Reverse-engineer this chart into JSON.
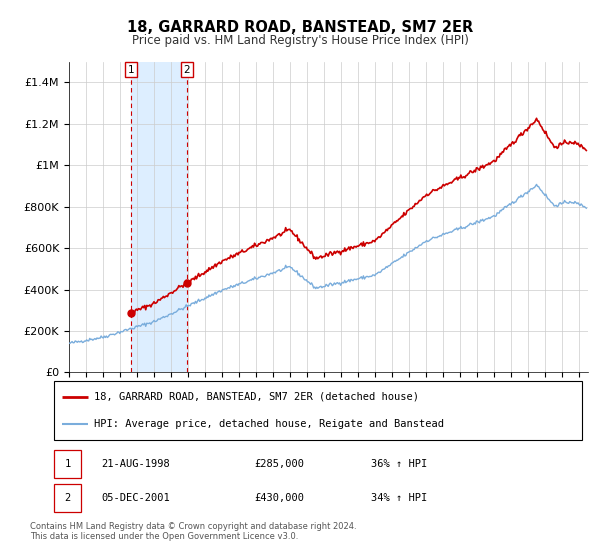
{
  "title": "18, GARRARD ROAD, BANSTEAD, SM7 2ER",
  "subtitle": "Price paid vs. HM Land Registry's House Price Index (HPI)",
  "legend_line1": "18, GARRARD ROAD, BANSTEAD, SM7 2ER (detached house)",
  "legend_line2": "HPI: Average price, detached house, Reigate and Banstead",
  "footer": "Contains HM Land Registry data © Crown copyright and database right 2024.\nThis data is licensed under the Open Government Licence v3.0.",
  "purchase1_date": "21-AUG-1998",
  "purchase1_price": 285000,
  "purchase1_hpi": "36% ↑ HPI",
  "purchase2_date": "05-DEC-2001",
  "purchase2_price": 430000,
  "purchase2_hpi": "34% ↑ HPI",
  "red_color": "#cc0000",
  "blue_color": "#7aaddc",
  "shading_color": "#ddeeff",
  "xlim": [
    1995.0,
    2025.5
  ],
  "ylim": [
    0,
    1500000
  ],
  "yticks": [
    0,
    200000,
    400000,
    600000,
    800000,
    1000000,
    1200000,
    1400000
  ],
  "ytick_labels": [
    "£0",
    "£200K",
    "£400K",
    "£600K",
    "£800K",
    "£1M",
    "£1.2M",
    "£1.4M"
  ],
  "purchase1_x": 1998.645,
  "purchase2_x": 2001.924
}
